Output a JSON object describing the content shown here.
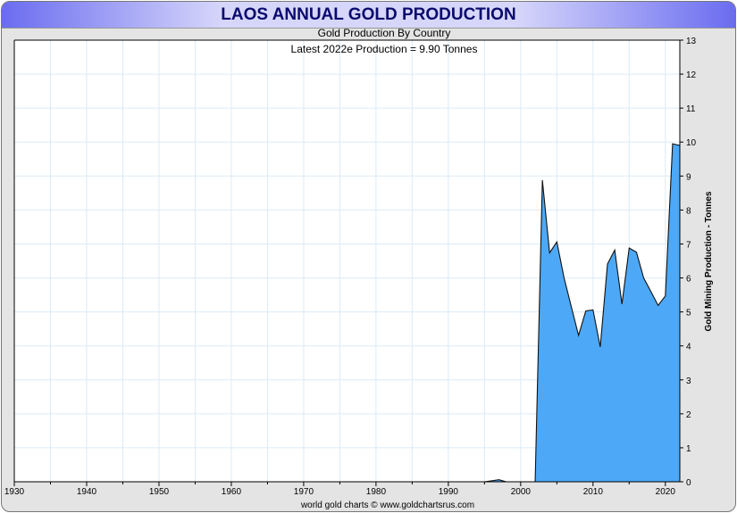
{
  "chart_data": {
    "type": "area",
    "title": "LAOS ANNUAL GOLD PRODUCTION",
    "subtitle": "Gold Production By Country",
    "annotation": "Latest 2022e  Production = 9.90 Tonnes",
    "ylabel": "Gold Mining Production - Tonnes",
    "xlabel": "",
    "footer": "world gold charts © www.goldchartsrus.com",
    "xlim": [
      1930,
      2022
    ],
    "ylim": [
      0,
      13
    ],
    "x_ticks": [
      "1930",
      "1940",
      "1950",
      "1960",
      "1970",
      "1980",
      "1990",
      "2000",
      "2010",
      "2020"
    ],
    "y_ticks": [
      "0",
      "1",
      "2",
      "3",
      "4",
      "5",
      "6",
      "7",
      "8",
      "9",
      "10",
      "11",
      "12",
      "13"
    ],
    "grid": true,
    "fill_color": "#4da9f7",
    "x": [
      1930,
      1995,
      1996,
      1997,
      1998,
      2002,
      2003,
      2004,
      2005,
      2006,
      2007,
      2008,
      2009,
      2010,
      2011,
      2012,
      2013,
      2014,
      2015,
      2016,
      2017,
      2018,
      2019,
      2020,
      2021,
      2022
    ],
    "values": [
      0,
      0,
      0.03,
      0.06,
      0,
      0,
      8.88,
      6.74,
      7.06,
      6.0,
      5.15,
      4.31,
      5.03,
      5.06,
      3.97,
      6.41,
      6.82,
      5.23,
      6.88,
      6.76,
      6.0,
      5.6,
      5.19,
      5.47,
      9.95,
      9.9
    ]
  }
}
